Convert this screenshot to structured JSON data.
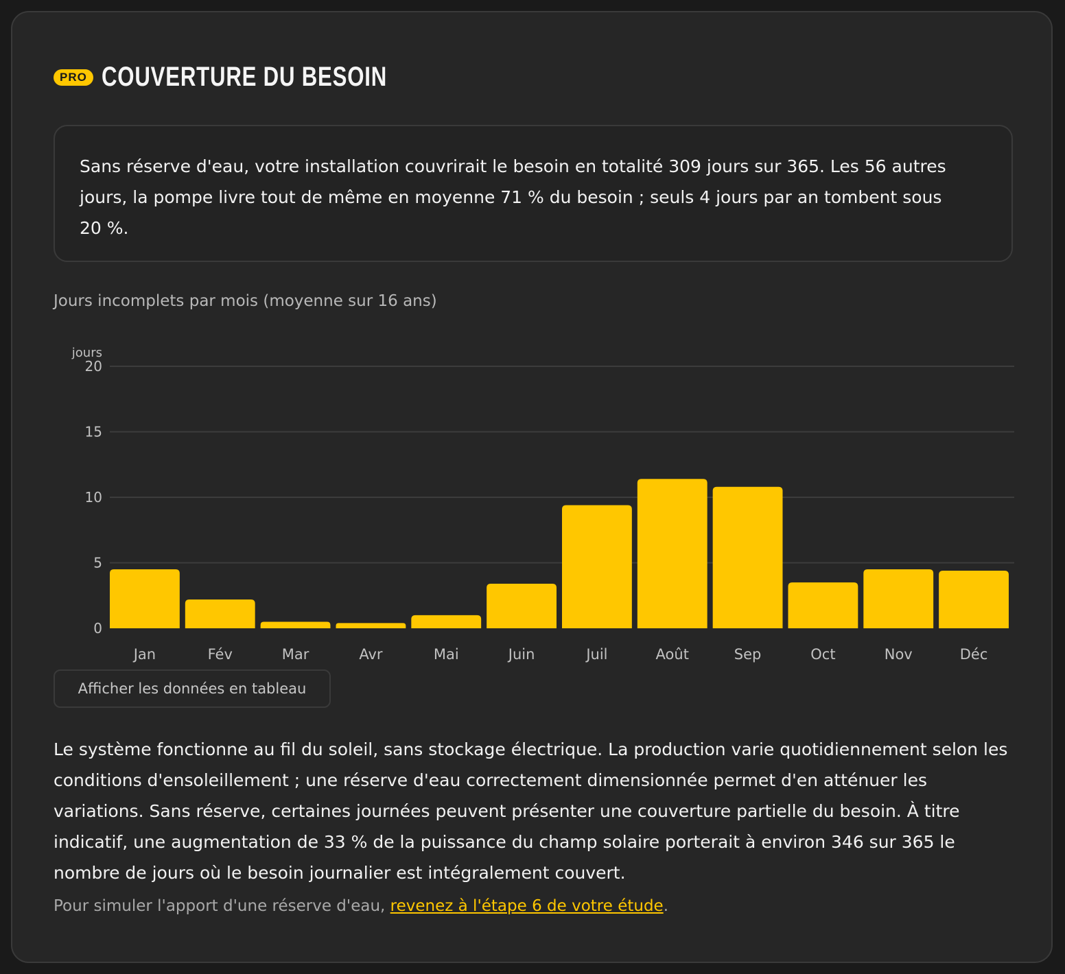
{
  "header": {
    "badge": "PRO",
    "title": "COUVERTURE DU BESOIN"
  },
  "summary": "Sans réserve d'eau, votre installation couvrirait le besoin en totalité 309 jours sur 365. Les 56 autres jours, la pompe livre tout de même en moyenne 71 % du besoin ; seuls 4 jours par an tombent sous 20 %.",
  "chart_caption": "Jours incomplets par mois (moyenne sur 16 ans)",
  "chart_data": {
    "type": "bar",
    "title": "Jours incomplets par mois (moyenne sur 16 ans)",
    "ylabel": "jours",
    "xlabel": "",
    "categories": [
      "Jan",
      "Fév",
      "Mar",
      "Avr",
      "Mai",
      "Juin",
      "Juil",
      "Août",
      "Sep",
      "Oct",
      "Nov",
      "Déc"
    ],
    "values": [
      4.5,
      2.2,
      0.5,
      0.4,
      1.0,
      3.4,
      9.4,
      11.4,
      10.8,
      3.5,
      4.5,
      4.4
    ],
    "ylim": [
      0,
      20
    ],
    "yticks": [
      0,
      5,
      10,
      15,
      20
    ],
    "grid": true,
    "bar_color": "#ffc700",
    "grid_color": "#3c3c3c"
  },
  "table_button": "Afficher les données en tableau",
  "body_text": "Le système fonctionne au fil du soleil, sans stockage électrique. La production varie quotidiennement selon les conditions d'ensoleillement ; une réserve d'eau correctement dimensionnée permet d'en atténuer les variations. Sans réserve, certaines journées peuvent présenter une couverture partielle du besoin. À titre indicatif, une augmentation de 33 % de la puissance du champ solaire porterait à environ 346 sur 365 le nombre de jours où le besoin journalier est intégralement couvert.",
  "footnote": {
    "prefix": "Pour simuler l'apport d'une réserve d'eau, ",
    "link": "revenez à l'étape 6 de votre étude",
    "suffix": "."
  },
  "colors": {
    "accent": "#ffc700",
    "background": "#262626",
    "page": "#1a1a1a"
  }
}
